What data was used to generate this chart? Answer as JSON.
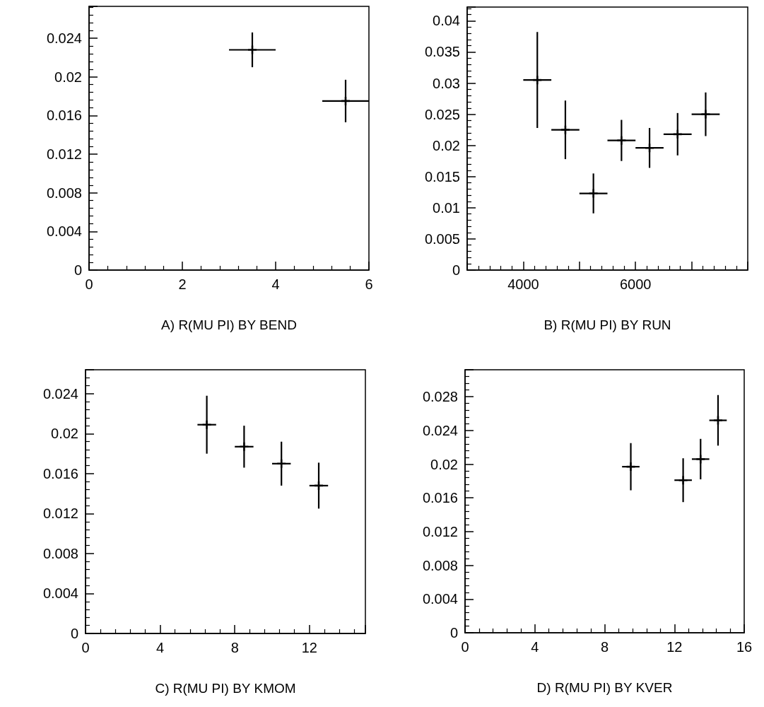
{
  "chart_data": [
    {
      "type": "scatter",
      "xlabel": "A) R(MU PI) BY BEND",
      "x": [
        3.5,
        5.5
      ],
      "series": [
        {
          "color": "#000000",
          "values": [
            0.0228,
            0.0175
          ],
          "errors": [
            0.0018,
            0.0022
          ],
          "xerrors": [
            0.5,
            0.5
          ]
        }
      ],
      "xlim": [
        0,
        6
      ],
      "xticks": [
        0,
        2,
        4,
        6
      ],
      "ylim": [
        0,
        0.0273
      ],
      "yticks": [
        0,
        0.004,
        0.008,
        0.012,
        0.016,
        0.02,
        0.024
      ],
      "marker": "cross"
    },
    {
      "type": "scatter",
      "xlabel": "B) R(MU PI) BY RUN",
      "x": [
        4250,
        4750,
        5250,
        5750,
        6250,
        6750,
        7250
      ],
      "series": [
        {
          "color": "#000000",
          "values": [
            0.0305,
            0.0225,
            0.0123,
            0.0208,
            0.0196,
            0.0218,
            0.025
          ],
          "errors": [
            0.0077,
            0.0047,
            0.0032,
            0.0033,
            0.0032,
            0.0034,
            0.0035
          ],
          "xerrors": [
            250,
            250,
            250,
            250,
            250,
            250,
            250
          ]
        }
      ],
      "xlim": [
        3000,
        8000
      ],
      "xticks": [
        4000,
        6000
      ],
      "ylim": [
        0,
        0.0422
      ],
      "yticks": [
        0,
        0.005,
        0.01,
        0.015,
        0.02,
        0.025,
        0.03,
        0.035,
        0.04
      ],
      "marker": "cross"
    },
    {
      "type": "scatter",
      "xlabel": "C) R(MU PI) BY KMOM",
      "x": [
        6.5,
        8.5,
        10.5,
        12.5
      ],
      "series": [
        {
          "color": "#000000",
          "values": [
            0.0209,
            0.0187,
            0.017,
            0.0148
          ],
          "errors": [
            0.0029,
            0.0021,
            0.0022,
            0.0023
          ],
          "xerrors": [
            0.5,
            0.5,
            0.5,
            0.5
          ]
        }
      ],
      "xlim": [
        0,
        15
      ],
      "xticks": [
        0,
        4,
        8,
        12
      ],
      "ylim": [
        0,
        0.0264
      ],
      "yticks": [
        0,
        0.004,
        0.008,
        0.012,
        0.016,
        0.02,
        0.024
      ],
      "marker": "cross"
    },
    {
      "type": "scatter",
      "xlabel": "D) R(MU PI) BY KVER",
      "x": [
        9.5,
        12.5,
        13.5,
        14.5
      ],
      "series": [
        {
          "color": "#000000",
          "values": [
            0.0197,
            0.0181,
            0.0206,
            0.0252
          ],
          "errors": [
            0.0028,
            0.0026,
            0.0024,
            0.003
          ],
          "xerrors": [
            0.5,
            0.5,
            0.5,
            0.5
          ]
        }
      ],
      "xlim": [
        0,
        16
      ],
      "xticks": [
        0,
        4,
        8,
        12,
        16
      ],
      "ylim": [
        0,
        0.0312
      ],
      "yticks": [
        0,
        0.004,
        0.008,
        0.012,
        0.016,
        0.02,
        0.024,
        0.028
      ],
      "marker": "cross"
    }
  ]
}
